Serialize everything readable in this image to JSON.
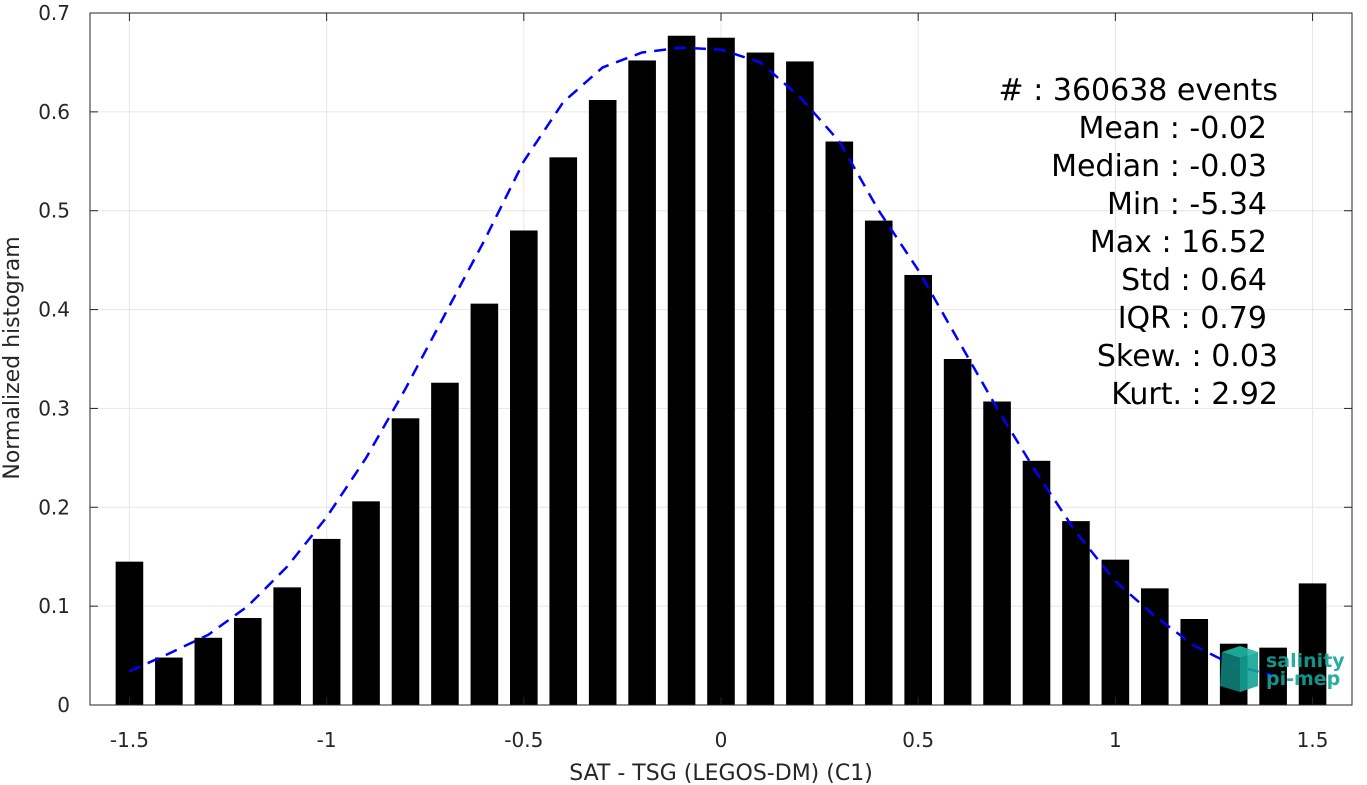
{
  "chart_data": {
    "type": "bar",
    "xlabel": "SAT - TSG (LEGOS-DM) (C1)",
    "ylabel": "Normalized histogram",
    "xlim": [
      -1.6,
      1.6
    ],
    "ylim": [
      0,
      0.7
    ],
    "xticks": [
      -1.5,
      -1,
      -0.5,
      0,
      0.5,
      1,
      1.5
    ],
    "xtick_labels": [
      "-1.5",
      "-1",
      "-0.5",
      "0",
      "0.5",
      "1",
      "1.5"
    ],
    "yticks": [
      0,
      0.1,
      0.2,
      0.3,
      0.4,
      0.5,
      0.6,
      0.7
    ],
    "ytick_labels": [
      "0",
      "0.1",
      "0.2",
      "0.3",
      "0.4",
      "0.5",
      "0.6",
      "0.7"
    ],
    "grid": true,
    "bar_color": "#000000",
    "fit_color": "#0000ff",
    "bar_width": 0.07,
    "x": [
      -1.5,
      -1.4,
      -1.3,
      -1.2,
      -1.1,
      -1.0,
      -0.9,
      -0.8,
      -0.7,
      -0.6,
      -0.5,
      -0.4,
      -0.3,
      -0.2,
      -0.1,
      0.0,
      0.1,
      0.2,
      0.3,
      0.4,
      0.5,
      0.6,
      0.7,
      0.8,
      0.9,
      1.0,
      1.1,
      1.2,
      1.3,
      1.4,
      1.5
    ],
    "values": [
      0.145,
      0.048,
      0.068,
      0.088,
      0.119,
      0.168,
      0.206,
      0.29,
      0.326,
      0.406,
      0.48,
      0.554,
      0.612,
      0.652,
      0.677,
      0.675,
      0.66,
      0.651,
      0.57,
      0.49,
      0.435,
      0.35,
      0.307,
      0.247,
      0.186,
      0.147,
      0.118,
      0.087,
      0.062,
      0.058,
      0.123
    ],
    "fit": {
      "name": "",
      "style": "dashed",
      "x": [
        -1.5,
        -1.4,
        -1.3,
        -1.2,
        -1.1,
        -1.0,
        -0.9,
        -0.8,
        -0.7,
        -0.6,
        -0.5,
        -0.4,
        -0.3,
        -0.2,
        -0.1,
        0.0,
        0.1,
        0.2,
        0.3,
        0.4,
        0.5,
        0.6,
        0.7,
        0.8,
        0.9,
        1.0,
        1.1,
        1.2,
        1.3,
        1.4
      ],
      "y": [
        0.034,
        0.052,
        0.071,
        0.1,
        0.14,
        0.19,
        0.25,
        0.32,
        0.395,
        0.47,
        0.55,
        0.61,
        0.645,
        0.66,
        0.665,
        0.663,
        0.65,
        0.615,
        0.57,
        0.5,
        0.44,
        0.37,
        0.3,
        0.235,
        0.175,
        0.125,
        0.09,
        0.06,
        0.04,
        0.03
      ]
    },
    "annotations": [
      "#  : 360638 events",
      "Mean : -0.02",
      "Median : -0.03",
      "Min : -5.34",
      "Max : 16.52",
      "Std : 0.64",
      "IQR : 0.79",
      "Skew. : 0.03",
      "Kurt. : 2.92"
    ]
  },
  "logo": {
    "line1": "salinity",
    "line2": "pi-mep",
    "color": "#15a497"
  }
}
